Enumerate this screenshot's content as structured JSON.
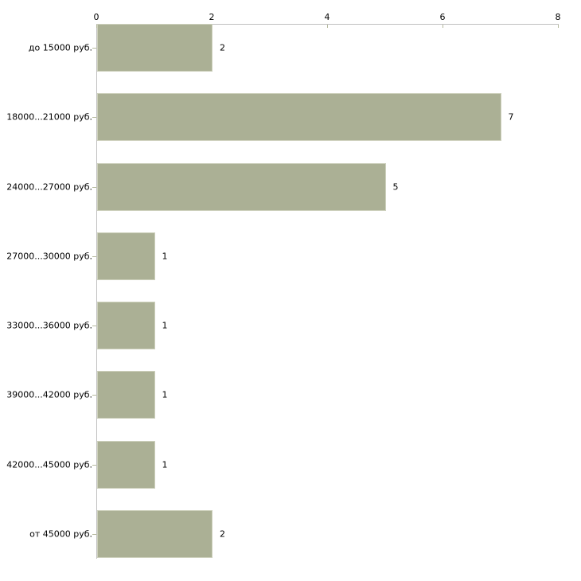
{
  "chart_data": {
    "type": "bar",
    "orientation": "horizontal",
    "title": "",
    "xlabel": "",
    "ylabel": "",
    "categories": [
      "до 15000 руб.",
      "18000...21000 руб.",
      "24000...27000 руб.",
      "27000...30000 руб.",
      "33000...36000 руб.",
      "39000...42000 руб.",
      "42000...45000 руб.",
      "от 45000 руб."
    ],
    "values": [
      2,
      7,
      5,
      1,
      1,
      1,
      1,
      2
    ],
    "value_axis": {
      "position": "top",
      "ticks": [
        "0",
        "2",
        "4",
        "6",
        "8"
      ],
      "tick_values": [
        0,
        2,
        4,
        6,
        8
      ],
      "range": [
        0,
        8
      ]
    },
    "grid": false,
    "legend": false
  },
  "colors": {
    "background": "#ffffff",
    "bar_fill": "#abb095",
    "bar_border": "#cdd0bc",
    "axis_line": "#c0c0c0",
    "tick_mark": "#b5b99e",
    "text": "#000000"
  }
}
